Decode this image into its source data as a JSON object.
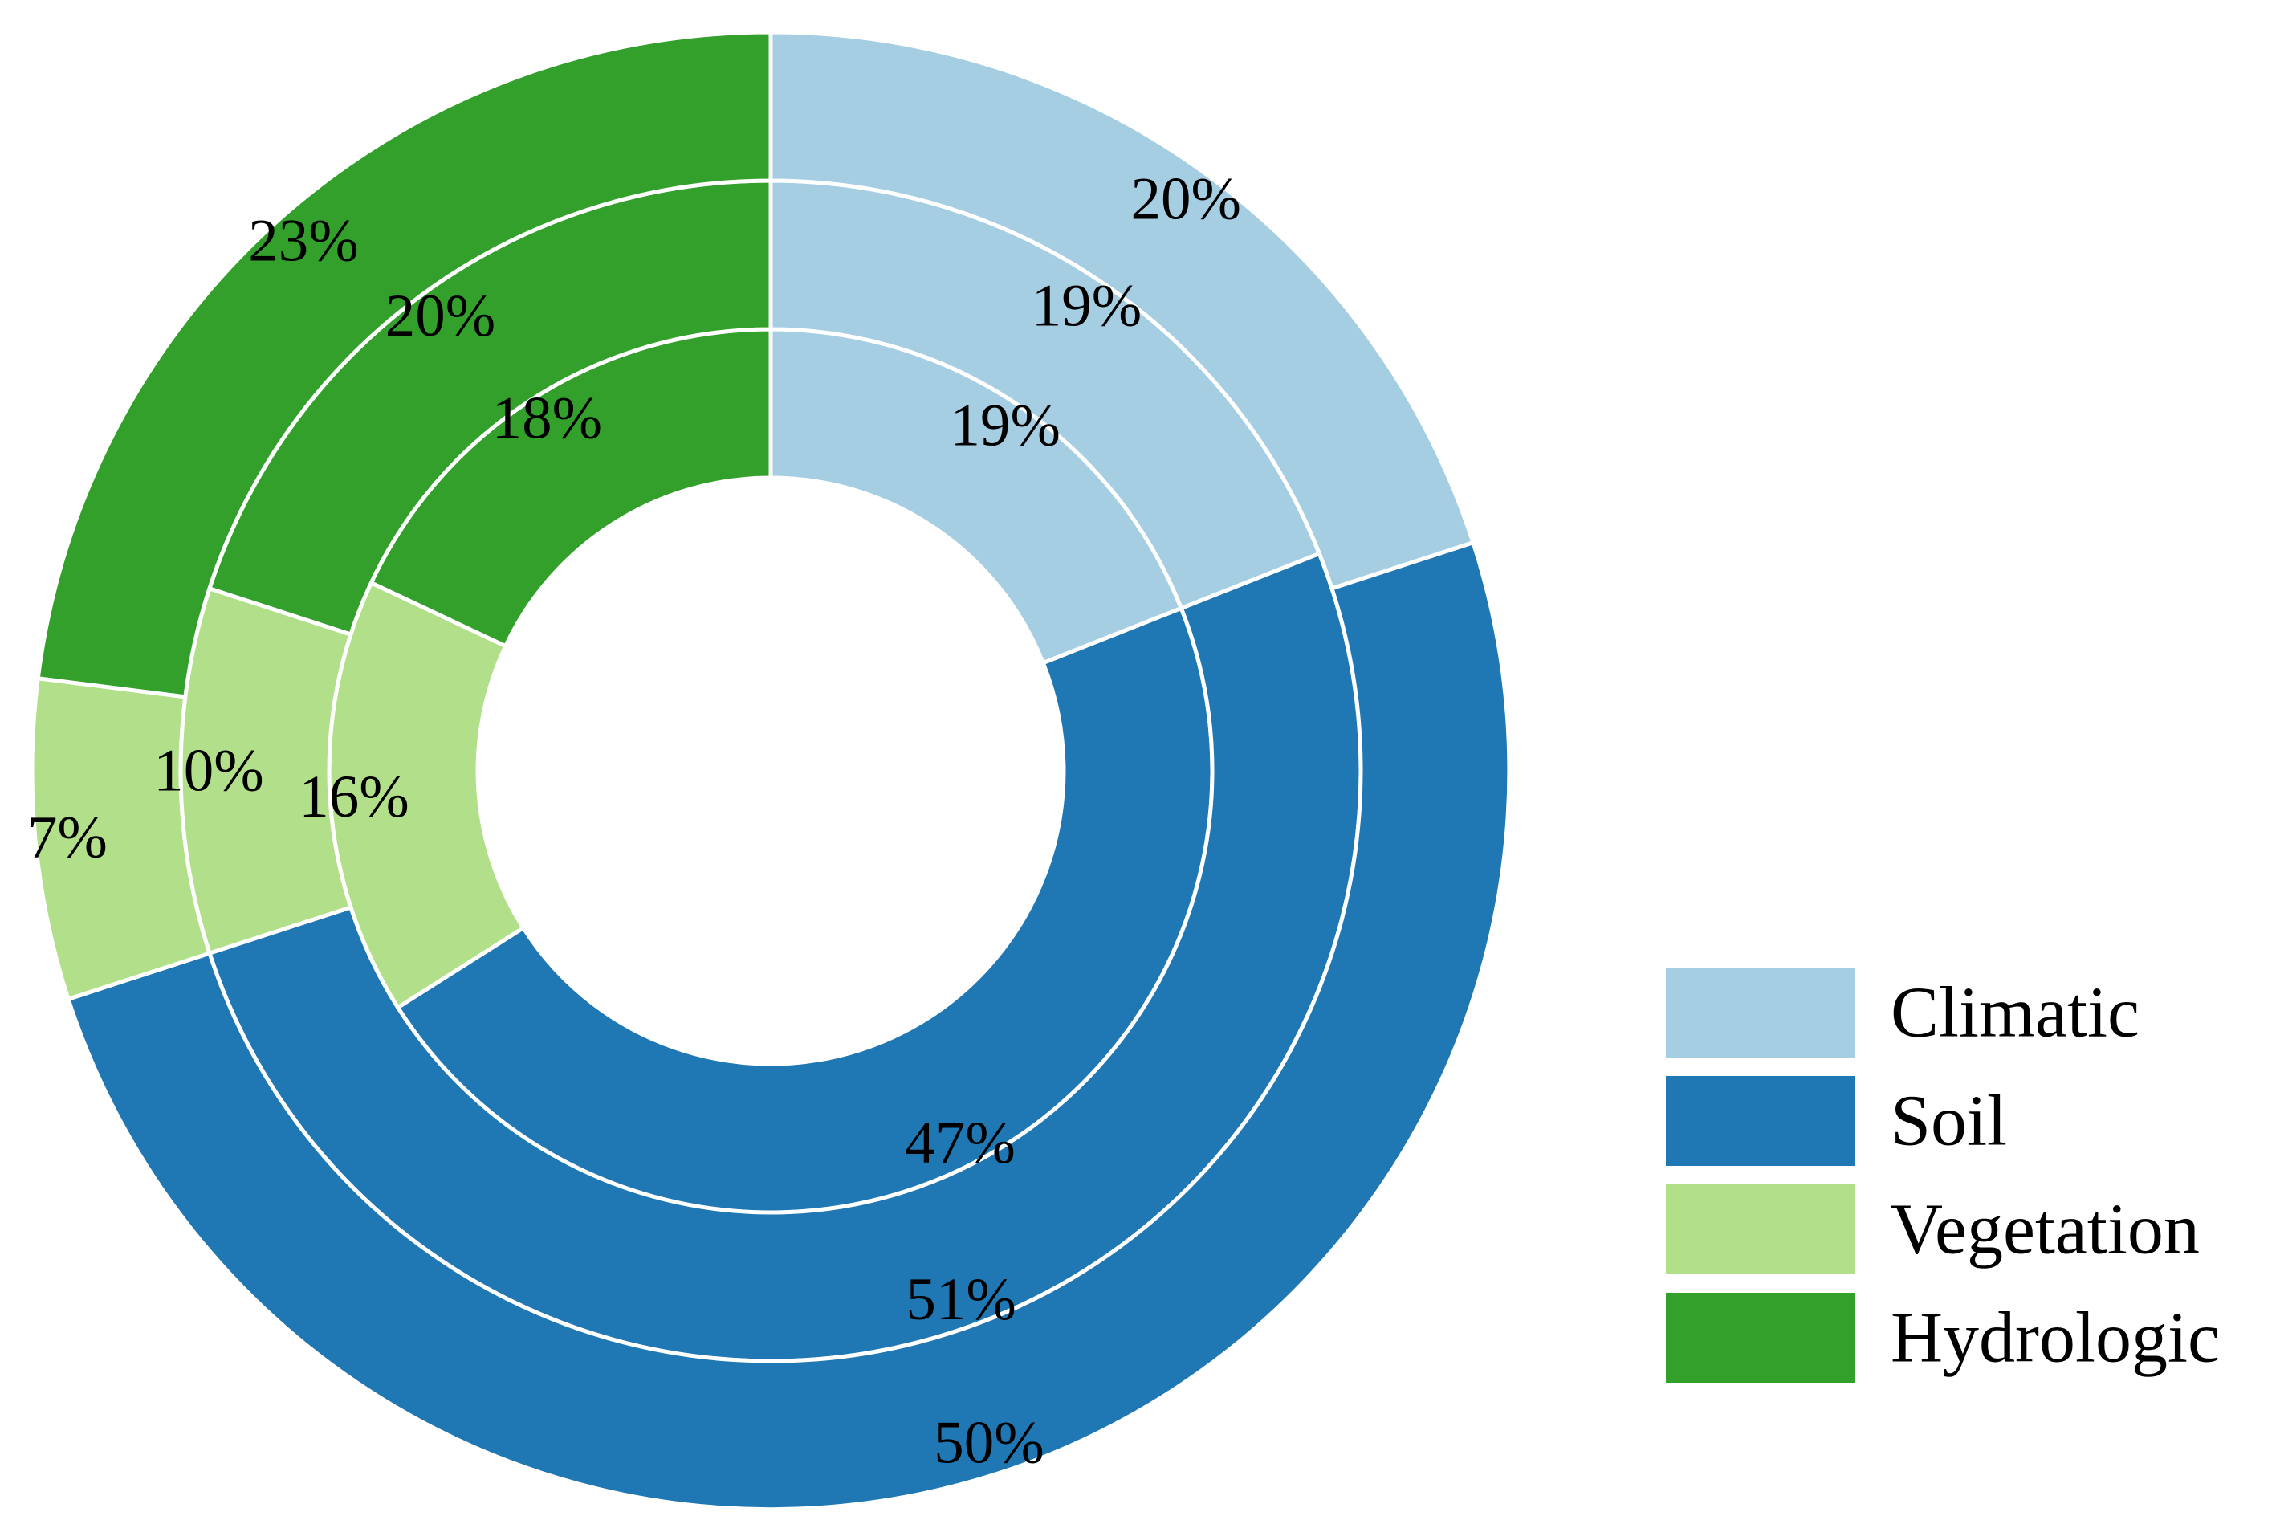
{
  "chart_data": {
    "type": "pie",
    "subtype": "nested-donut",
    "categories": [
      "Climatic",
      "Soil",
      "Vegetation",
      "Hydrologic"
    ],
    "colors": {
      "Climatic": "#a6cee3",
      "Soil": "#1f78b4",
      "Vegetation": "#b2df8a",
      "Hydrologic": "#33a02c"
    },
    "rings": [
      {
        "ring": "inner",
        "values": [
          19,
          47,
          16,
          18
        ],
        "labels": [
          "19%",
          "47%",
          "16%",
          "18%"
        ]
      },
      {
        "ring": "middle",
        "values": [
          19,
          51,
          10,
          20
        ],
        "labels": [
          "19%",
          "51%",
          "10%",
          "20%"
        ]
      },
      {
        "ring": "outer",
        "values": [
          20,
          50,
          7,
          23
        ],
        "labels": [
          "20%",
          "50%",
          "7%",
          "23%"
        ]
      }
    ],
    "start_angle": "12 o'clock",
    "direction": "clockwise",
    "legend": {
      "placement": "bottom-right",
      "entries": [
        "Climatic",
        "Soil",
        "Vegetation",
        "Hydrologic"
      ]
    }
  }
}
